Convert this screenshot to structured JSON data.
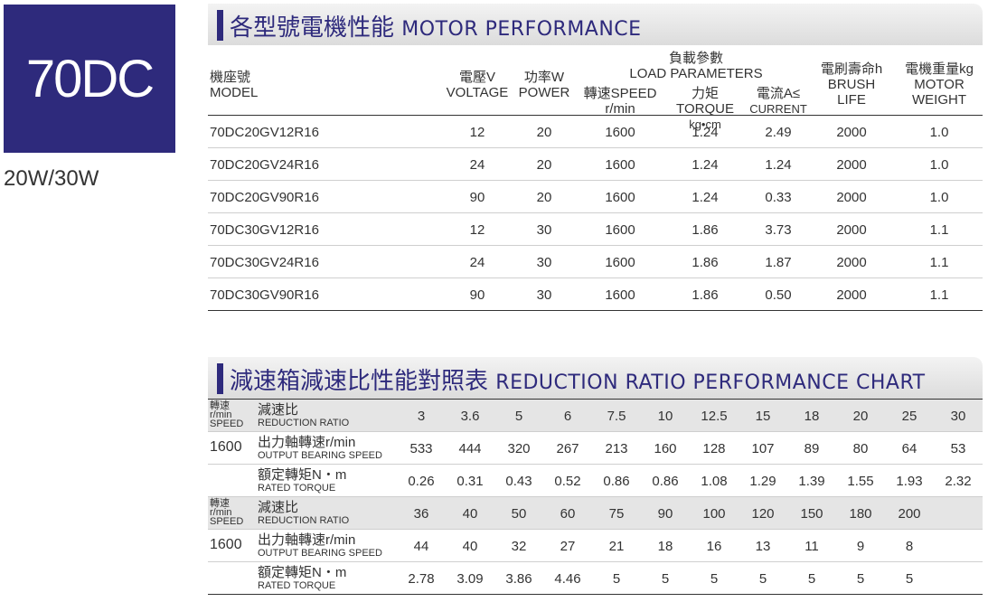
{
  "model": "70DC",
  "power_range": "20W/30W",
  "section1": {
    "title_zh": "各型號電機性能",
    "title_en": "MOTOR PERFORMANCE",
    "headers": {
      "model_zh": "機座號",
      "model_en": "MODEL",
      "voltage_zh": "電壓V",
      "voltage_en": "VOLTAGE",
      "power_zh": "功率W",
      "power_en": "POWER",
      "load_zh": "負載參數",
      "load_en": "LOAD PARAMETERS",
      "speed_zh": "轉速SPEED",
      "speed_unit": "r/min",
      "torque_zh": "力矩TORQUE",
      "torque_unit": "kg•cm",
      "current_zh": "電流A≤",
      "current_en": "CURRENT",
      "brush_zh": "電刷壽命h",
      "brush_en1": "BRUSH",
      "brush_en2": "LIFE",
      "weight_zh": "電機重量kg",
      "weight_en1": "MOTOR",
      "weight_en2": "WEIGHT"
    },
    "rows": [
      {
        "model": "70DC20GV12R16",
        "voltage": "12",
        "power": "20",
        "speed": "1600",
        "torque": "1.24",
        "current": "2.49",
        "brush": "2000",
        "weight": "1.0"
      },
      {
        "model": "70DC20GV24R16",
        "voltage": "24",
        "power": "20",
        "speed": "1600",
        "torque": "1.24",
        "current": "1.24",
        "brush": "2000",
        "weight": "1.0"
      },
      {
        "model": "70DC20GV90R16",
        "voltage": "90",
        "power": "20",
        "speed": "1600",
        "torque": "1.24",
        "current": "0.33",
        "brush": "2000",
        "weight": "1.0"
      },
      {
        "model": "70DC30GV12R16",
        "voltage": "12",
        "power": "30",
        "speed": "1600",
        "torque": "1.86",
        "current": "3.73",
        "brush": "2000",
        "weight": "1.1"
      },
      {
        "model": "70DC30GV24R16",
        "voltage": "24",
        "power": "30",
        "speed": "1600",
        "torque": "1.86",
        "current": "1.87",
        "brush": "2000",
        "weight": "1.1"
      },
      {
        "model": "70DC30GV90R16",
        "voltage": "90",
        "power": "30",
        "speed": "1600",
        "torque": "1.86",
        "current": "0.50",
        "brush": "2000",
        "weight": "1.1"
      }
    ]
  },
  "section2": {
    "title_zh": "減速箱減速比性能對照表",
    "title_en": "REDUCTION RATIO PERFORMANCE CHART",
    "speed_label_zh": "轉速",
    "speed_label_unit": "r/min",
    "speed_label_en": "SPEED",
    "ratio_label_zh": "減速比",
    "ratio_label_en": "REDUCTION RATIO",
    "output_label_zh": "出力軸轉速r/min",
    "output_label_en": "OUTPUT BEARING SPEED",
    "torque_label_zh": "額定轉矩N・m",
    "torque_label_en": "RATED TORQUE",
    "rpm": "1600",
    "groups": [
      {
        "ratios": [
          "3",
          "3.6",
          "5",
          "6",
          "7.5",
          "10",
          "12.5",
          "15",
          "18",
          "20",
          "25",
          "30"
        ],
        "speeds": [
          "533",
          "444",
          "320",
          "267",
          "213",
          "160",
          "128",
          "107",
          "89",
          "80",
          "64",
          "53"
        ],
        "torques": [
          "0.26",
          "0.31",
          "0.43",
          "0.52",
          "0.86",
          "0.86",
          "1.08",
          "1.29",
          "1.39",
          "1.55",
          "1.93",
          "2.32"
        ]
      },
      {
        "ratios": [
          "36",
          "40",
          "50",
          "60",
          "75",
          "90",
          "100",
          "120",
          "150",
          "180",
          "200"
        ],
        "speeds": [
          "44",
          "40",
          "32",
          "27",
          "21",
          "18",
          "16",
          "13",
          "11",
          "9",
          "8"
        ],
        "torques": [
          "2.78",
          "3.09",
          "3.86",
          "4.46",
          "5",
          "5",
          "5",
          "5",
          "5",
          "5",
          "5"
        ]
      }
    ]
  }
}
